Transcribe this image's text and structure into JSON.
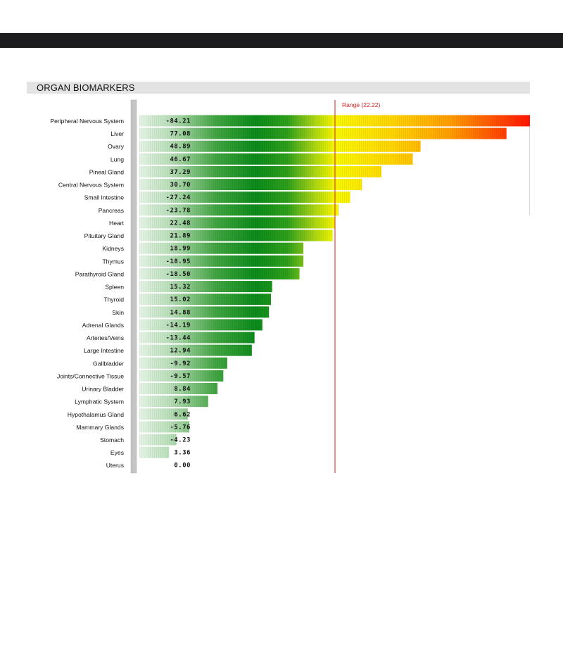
{
  "section": {
    "title": "ORGAN BIOMARKERS"
  },
  "chart_data": {
    "type": "bar",
    "orientation": "horizontal",
    "title": "",
    "xlim": [
      0,
      100
    ],
    "reference_line": {
      "value": 50,
      "label": "Range (22.22)",
      "color": "#d42020"
    },
    "categories": [
      "Peripheral Nervous System",
      "Liver",
      "Ovary",
      "Lung",
      "Pineal Gland",
      "Central Nervous System",
      "Small Intestine",
      "Pancreas",
      "Heart",
      "Pituitary Gland",
      "Kidneys",
      "Thymus",
      "Parathyroid Gland",
      "Spleen",
      "Thyroid",
      "Skin",
      "Adrenal Glands",
      "Arteries/Veins",
      "Large Intestine",
      "Gallbladder",
      "Joints/Connective Tissue",
      "Urinary Bladder",
      "Lymphatic System",
      "Hypothalamus Gland",
      "Mammary Glands",
      "Stomach",
      "Eyes",
      "Uterus"
    ],
    "value_labels": [
      "-84.21",
      "77.08",
      "48.89",
      "46.67",
      "37.29",
      "30.70",
      "-27.24",
      "-23.78",
      "22.48",
      "21.89",
      "18.99",
      "-18.95",
      "-18.50",
      "15.32",
      "15.02",
      "14.88",
      "-14.19",
      "-13.44",
      "12.94",
      "-9.92",
      "-9.57",
      "8.84",
      "7.93",
      "6.62",
      "-5.76",
      "-4.23",
      "3.36",
      "0.00"
    ],
    "bar_levels": [
      100,
      94,
      72,
      70,
      62,
      57,
      54,
      51,
      50,
      49.5,
      42,
      42,
      41,
      34,
      33.7,
      33.2,
      31.5,
      29.5,
      28.8,
      22.5,
      21.5,
      20,
      17.6,
      12.4,
      12.8,
      9.5,
      7.6,
      0
    ],
    "colors": {
      "low": "#d9f0d9",
      "green": "#0e8a1a",
      "yellow": "#f8f800",
      "orange": "#ffa500",
      "red": "#ff1400"
    }
  }
}
